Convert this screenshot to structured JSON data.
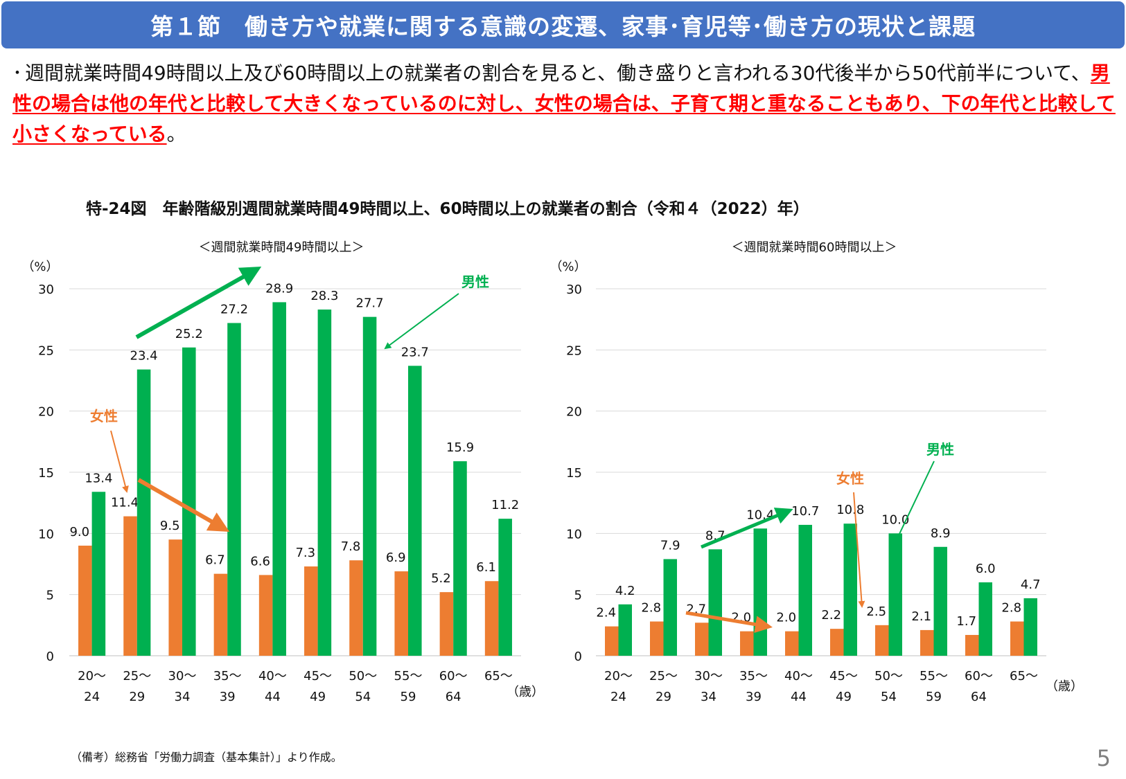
{
  "header": {
    "title": "第１節　働き方や就業に関する意識の変遷、家事･育児等･働き方の現状と課題"
  },
  "summary": {
    "bullet": "･",
    "text_before": "週間就業時間49時間以上及び60時間以上の就業者の割合を見ると、働き盛りと言われる30代後半から50代前半について、",
    "text_highlight": "男性の場合は他の年代と比較して大きくなっているのに対し、女性の場合は、子育て期と重なることもあり、下の年代と比較して小さくなっている",
    "text_after": "。"
  },
  "figure_title": "特-24図　年齢階級別週間就業時間49時間以上、60時間以上の就業者の割合（令和４（2022）年）",
  "source_note": "（備考）総務省「労働力調査（基本集計）」より作成。",
  "page_number": "5",
  "colors": {
    "header_bg": "#4472c4",
    "female": "#ed7d31",
    "male": "#00b050",
    "highlight_text": "#ff0000",
    "gridline": "#d9d9d9"
  },
  "chart_data": [
    {
      "type": "bar",
      "title": "＜週間就業時間49時間以上＞",
      "y_unit_label": "（%）",
      "x_unit_label": "（歳）",
      "ylim": [
        0,
        30
      ],
      "yticks": [
        0,
        5,
        10,
        15,
        20,
        25,
        30
      ],
      "grid": true,
      "categories": [
        [
          "20～",
          "24"
        ],
        [
          "25～",
          "29"
        ],
        [
          "30～",
          "34"
        ],
        [
          "35～",
          "39"
        ],
        [
          "40～",
          "44"
        ],
        [
          "45～",
          "49"
        ],
        [
          "50～",
          "54"
        ],
        [
          "55～",
          "59"
        ],
        [
          "60～",
          "64"
        ],
        [
          "65～",
          ""
        ]
      ],
      "series": [
        {
          "name": "女性",
          "color": "#ed7d31",
          "values": [
            9.0,
            11.4,
            9.5,
            6.7,
            6.6,
            7.3,
            7.8,
            6.9,
            5.2,
            6.1
          ]
        },
        {
          "name": "男性",
          "color": "#00b050",
          "values": [
            13.4,
            23.4,
            25.2,
            27.2,
            28.9,
            28.3,
            27.7,
            23.7,
            15.9,
            11.2
          ]
        }
      ]
    },
    {
      "type": "bar",
      "title": "＜週間就業時間60時間以上＞",
      "y_unit_label": "（%）",
      "x_unit_label": "（歳）",
      "ylim": [
        0,
        30
      ],
      "yticks": [
        0,
        5,
        10,
        15,
        20,
        25,
        30
      ],
      "grid": true,
      "categories": [
        [
          "20～",
          "24"
        ],
        [
          "25～",
          "29"
        ],
        [
          "30～",
          "34"
        ],
        [
          "35～",
          "39"
        ],
        [
          "40～",
          "44"
        ],
        [
          "45～",
          "49"
        ],
        [
          "50～",
          "54"
        ],
        [
          "55～",
          "59"
        ],
        [
          "60～",
          "64"
        ],
        [
          "65～",
          ""
        ]
      ],
      "series": [
        {
          "name": "女性",
          "color": "#ed7d31",
          "values": [
            2.4,
            2.8,
            2.7,
            2.0,
            2.0,
            2.2,
            2.5,
            2.1,
            1.7,
            2.8
          ]
        },
        {
          "name": "男性",
          "color": "#00b050",
          "values": [
            4.2,
            7.9,
            8.7,
            10.4,
            10.7,
            10.8,
            10.0,
            8.9,
            6.0,
            4.7
          ]
        }
      ]
    }
  ]
}
